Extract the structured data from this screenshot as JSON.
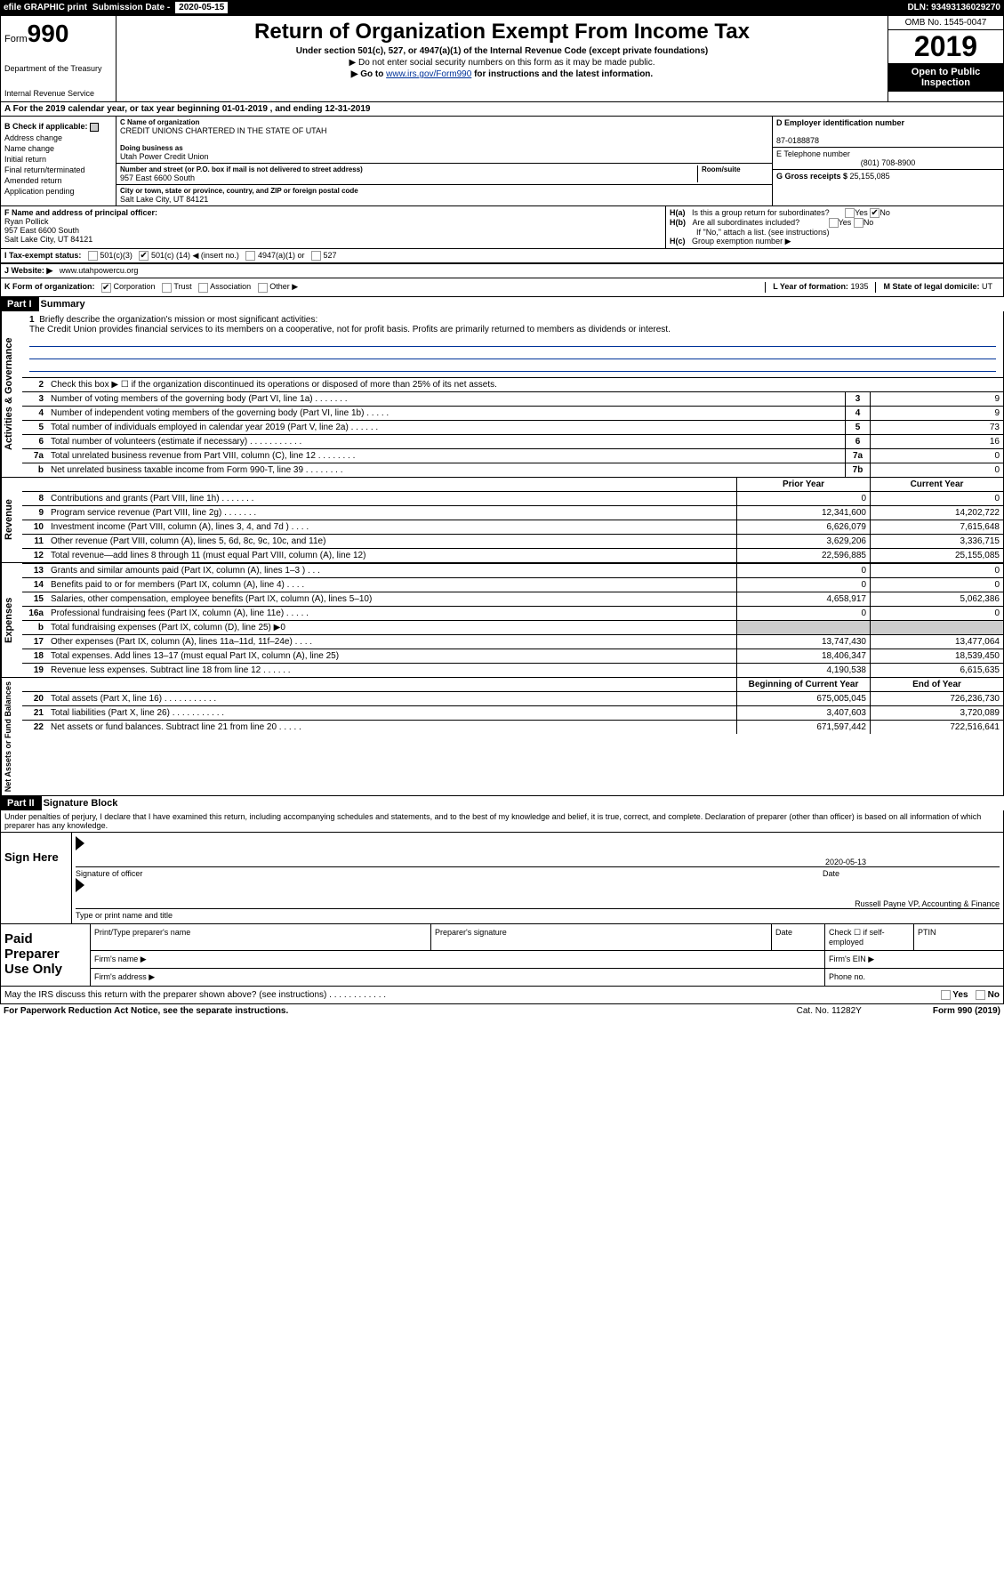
{
  "topbar": {
    "efile_label": "efile GRAPHIC print",
    "submission_label": "Submission Date - ",
    "submission_date": "2020-05-15",
    "dln_label": "DLN: ",
    "dln": "93493136029270"
  },
  "header": {
    "form_prefix": "Form",
    "form_number": "990",
    "dept1": "Department of the Treasury",
    "dept2": "Internal Revenue Service",
    "title": "Return of Organization Exempt From Income Tax",
    "subtitle": "Under section 501(c), 527, or 4947(a)(1) of the Internal Revenue Code (except private foundations)",
    "note1": "▶ Do not enter social security numbers on this form as it may be made public.",
    "note2_pre": "▶ Go to ",
    "note2_link": "www.irs.gov/Form990",
    "note2_post": " for instructions and the latest information.",
    "omb": "OMB No. 1545-0047",
    "year": "2019",
    "inspection": "Open to Public Inspection"
  },
  "row_a": "A   For the 2019 calendar year, or tax year beginning 01-01-2019      , and ending 12-31-2019",
  "section_b": {
    "label": "B Check if applicable:",
    "items": [
      "Address change",
      "Name change",
      "Initial return",
      "Final return/terminated",
      "Amended return",
      "Application pending"
    ]
  },
  "section_c": {
    "name_label": "C Name of organization",
    "name": "CREDIT UNIONS CHARTERED IN THE STATE OF UTAH",
    "dba_label": "Doing business as",
    "dba": "Utah Power Credit Union",
    "addr_label": "Number and street (or P.O. box if mail is not delivered to street address)",
    "addr": "957 East 6600 South",
    "room_label": "Room/suite",
    "city_label": "City or town, state or province, country, and ZIP or foreign postal code",
    "city": "Salt Lake City, UT  84121"
  },
  "section_d": {
    "ein_label": "D Employer identification number",
    "ein": "87-0188878",
    "phone_label": "E Telephone number",
    "phone": "(801) 708-8900",
    "gross_label": "G Gross receipts $ ",
    "gross": "25,155,085"
  },
  "section_f": {
    "label": "F  Name and address of principal officer:",
    "name": "Ryan Pollick",
    "addr1": "957 East 6600 South",
    "addr2": "Salt Lake City, UT  84121"
  },
  "section_h": {
    "ha_label": "H(a)",
    "ha_text": "Is this a group return for subordinates?",
    "hb_label": "H(b)",
    "hb_text": "Are all subordinates included?",
    "hb_note": "If \"No,\" attach a list. (see instructions)",
    "hc_label": "H(c)",
    "hc_text": "Group exemption number ▶",
    "yes": "Yes",
    "no": "No"
  },
  "row_i": {
    "label": "I     Tax-exempt status:",
    "opt1": "501(c)(3)",
    "opt2_pre": "501(c) (",
    "opt2_val": "14",
    "opt2_post": ") ◀ (insert no.)",
    "opt3": "4947(a)(1) or",
    "opt4": "527"
  },
  "row_j": {
    "label": "J    Website: ▶",
    "val": "www.utahpowercu.org"
  },
  "row_k": {
    "label": "K Form of organization:",
    "opts": [
      "Corporation",
      "Trust",
      "Association",
      "Other ▶"
    ],
    "l_label": "L Year of formation: ",
    "l_val": "1935",
    "m_label": "M State of legal domicile: ",
    "m_val": "UT"
  },
  "part1": {
    "hdr": "Part I",
    "title": "Summary",
    "q1_label": "1",
    "q1_text": "Briefly describe the organization's mission or most significant activities:",
    "q1_val": "The Credit Union provides financial services to its members on a cooperative, not for profit basis. Profits are primarily returned to members as dividends or interest.",
    "tab_ag": "Activities & Governance",
    "tab_rev": "Revenue",
    "tab_exp": "Expenses",
    "tab_net": "Net Assets or Fund Balances",
    "lines_ag": [
      {
        "n": "2",
        "t": "Check this box ▶ ☐ if the organization discontinued its operations or disposed of more than 25% of its net assets."
      },
      {
        "n": "3",
        "t": "Number of voting members of the governing body (Part VI, line 1a)   .       .       .       .       .       .       .",
        "bn": "3",
        "bv": "9"
      },
      {
        "n": "4",
        "t": "Number of independent voting members of the governing body (Part VI, line 1b)   .       .       .       .       .",
        "bn": "4",
        "bv": "9"
      },
      {
        "n": "5",
        "t": "Total number of individuals employed in calendar year 2019 (Part V, line 2a)   .       .       .       .       .       .",
        "bn": "5",
        "bv": "73"
      },
      {
        "n": "6",
        "t": "Total number of volunteers (estimate if necessary)    .       .       .       .       .       .       .       .       .       .       .",
        "bn": "6",
        "bv": "16"
      },
      {
        "n": "7a",
        "t": "Total unrelated business revenue from Part VIII, column (C), line 12   .       .       .       .       .       .       .       .",
        "bn": "7a",
        "bv": "0"
      },
      {
        "n": "b",
        "t": "Net unrelated business taxable income from Form 990-T, line 39    .       .       .       .       .       .       .       .",
        "bn": "7b",
        "bv": "0"
      }
    ],
    "col_prior": "Prior Year",
    "col_current": "Current Year",
    "lines_rev": [
      {
        "n": "8",
        "t": "Contributions and grants (Part VIII, line 1h)   .       .       .       .       .       .       .",
        "p": "0",
        "c": "0"
      },
      {
        "n": "9",
        "t": "Program service revenue (Part VIII, line 2g)   .       .       .       .       .       .       .",
        "p": "12,341,600",
        "c": "14,202,722"
      },
      {
        "n": "10",
        "t": "Investment income (Part VIII, column (A), lines 3, 4, and 7d )   .       .       .       .",
        "p": "6,626,079",
        "c": "7,615,648"
      },
      {
        "n": "11",
        "t": "Other revenue (Part VIII, column (A), lines 5, 6d, 8c, 9c, 10c, and 11e)",
        "p": "3,629,206",
        "c": "3,336,715"
      },
      {
        "n": "12",
        "t": "Total revenue—add lines 8 through 11 (must equal Part VIII, column (A), line 12)",
        "p": "22,596,885",
        "c": "25,155,085"
      }
    ],
    "lines_exp": [
      {
        "n": "13",
        "t": "Grants and similar amounts paid (Part IX, column (A), lines 1–3 )   .       .       .",
        "p": "0",
        "c": "0"
      },
      {
        "n": "14",
        "t": "Benefits paid to or for members (Part IX, column (A), line 4)   .       .       .       .",
        "p": "0",
        "c": "0"
      },
      {
        "n": "15",
        "t": "Salaries, other compensation, employee benefits (Part IX, column (A), lines 5–10)",
        "p": "4,658,917",
        "c": "5,062,386"
      },
      {
        "n": "16a",
        "t": "Professional fundraising fees (Part IX, column (A), line 11e)   .       .       .       .       .",
        "p": "0",
        "c": "0"
      },
      {
        "n": "b",
        "t": "Total fundraising expenses (Part IX, column (D), line 25) ▶0",
        "p": "",
        "c": "",
        "grey": true
      },
      {
        "n": "17",
        "t": "Other expenses (Part IX, column (A), lines 11a–11d, 11f–24e)   .       .       .       .",
        "p": "13,747,430",
        "c": "13,477,064"
      },
      {
        "n": "18",
        "t": "Total expenses. Add lines 13–17 (must equal Part IX, column (A), line 25)",
        "p": "18,406,347",
        "c": "18,539,450"
      },
      {
        "n": "19",
        "t": "Revenue less expenses. Subtract line 18 from line 12   .       .       .       .       .       .",
        "p": "4,190,538",
        "c": "6,615,635"
      }
    ],
    "col_begin": "Beginning of Current Year",
    "col_end": "End of Year",
    "lines_net": [
      {
        "n": "20",
        "t": "Total assets (Part X, line 16)   .       .       .       .       .       .       .       .       .       .       .",
        "p": "675,005,045",
        "c": "726,236,730"
      },
      {
        "n": "21",
        "t": "Total liabilities (Part X, line 26)   .       .       .       .       .       .       .       .       .       .       .",
        "p": "3,407,603",
        "c": "3,720,089"
      },
      {
        "n": "22",
        "t": "Net assets or fund balances. Subtract line 21 from line 20   .       .       .       .       .",
        "p": "671,597,442",
        "c": "722,516,641"
      }
    ]
  },
  "part2": {
    "hdr": "Part II",
    "title": "Signature Block",
    "intro": "Under penalties of perjury, I declare that I have examined this return, including accompanying schedules and statements, and to the best of my knowledge and belief, it is true, correct, and complete. Declaration of preparer (other than officer) is based on all information of which preparer has any knowledge.",
    "sign_here": "Sign Here",
    "sig_officer": "Signature of officer",
    "sig_date_label": "Date",
    "sig_date": "2020-05-13",
    "officer_name": "Russell Payne  VP, Accounting & Finance",
    "name_title_label": "Type or print name and title",
    "paid_prep": "Paid Preparer Use Only",
    "pt_name": "Print/Type preparer's name",
    "pt_sig": "Preparer's signature",
    "pt_date": "Date",
    "pt_check": "Check ☐ if self-employed",
    "pt_ptin": "PTIN",
    "firm_name": "Firm's name    ▶",
    "firm_ein": "Firm's EIN ▶",
    "firm_addr": "Firm's address ▶",
    "firm_phone": "Phone no."
  },
  "footer": {
    "discuss": "May the IRS discuss this return with the preparer shown above? (see instructions)    .       .       .       .       .       .       .       .       .       .       .       .",
    "yes": "Yes",
    "no": "No",
    "paperwork": "For Paperwork Reduction Act Notice, see the separate instructions.",
    "cat": "Cat. No. 11282Y",
    "form": "Form 990 (2019)"
  }
}
